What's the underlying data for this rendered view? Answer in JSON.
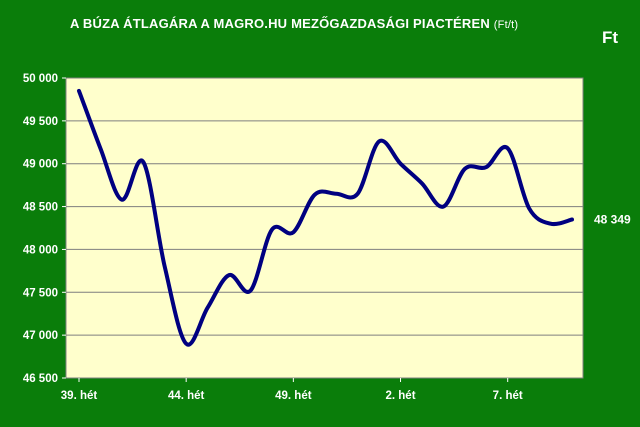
{
  "header": {
    "title": "A BÚZA ÁTLAGÁRA A MAGRO.HU MEZŐGAZDASÁGI PIACTÉREN",
    "title_unit": "(Ft/t)",
    "currency_label": "Ft"
  },
  "colors": {
    "background": "#0a7d0a",
    "plot_area": "#ffffcc",
    "line": "#000080",
    "gridline": "#7f7f7f"
  },
  "chart_data": {
    "type": "line",
    "title": "A BÚZA ÁTLAGÁRA A MAGRO.HU MEZŐGAZDASÁGI PIACTÉREN (Ft/t)",
    "ylabel": "Ft",
    "ylim": [
      46500,
      50000
    ],
    "ytick_step": 500,
    "ytick_labels": [
      "46 500",
      "47 000",
      "47 500",
      "48 000",
      "48 500",
      "49 000",
      "49 500",
      "50 000"
    ],
    "x_tick_labels": [
      "39. hét",
      "44. hét",
      "49. hét",
      "2. hét",
      "7. hét"
    ],
    "x_tick_every": 5,
    "grid": true,
    "legend": "none",
    "end_label": "48 349",
    "series": [
      {
        "values": [
          49850,
          49180,
          48580,
          49020,
          47800,
          46900,
          47320,
          47700,
          47520,
          48230,
          48200,
          48640,
          48650,
          48650,
          49260,
          49000,
          48770,
          48500,
          48940,
          48960,
          49180,
          48480,
          48300,
          48349
        ]
      }
    ]
  }
}
